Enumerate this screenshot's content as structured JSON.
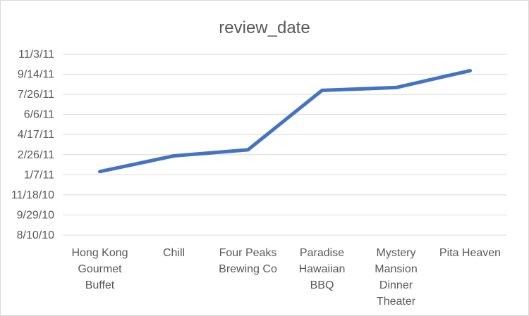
{
  "chart_data": {
    "type": "line",
    "title": "review_date",
    "xlabel": "",
    "ylabel": "",
    "categories": [
      "Hong Kong Gourmet Buffet",
      "Chill",
      "Four Peaks Brewing Co",
      "Paradise Hawaiian BBQ",
      "Mystery Mansion Dinner Theater",
      "Pita Heaven"
    ],
    "category_lines": [
      [
        "Hong Kong",
        "Gourmet",
        "Buffet"
      ],
      [
        "Chill"
      ],
      [
        "Four Peaks",
        "Brewing Co"
      ],
      [
        "Paradise",
        "Hawaiian",
        "BBQ"
      ],
      [
        "Mystery",
        "Mansion",
        "Dinner",
        "Theater"
      ],
      [
        "Pita Heaven"
      ]
    ],
    "series": [
      {
        "values": [
          "2011-01-15",
          "2011-02-23",
          "2011-03-10",
          "2011-08-05",
          "2011-08-12",
          "2011-09-23"
        ],
        "color": "#4472c4"
      }
    ],
    "y_ticks": [
      "11/3/11",
      "9/14/11",
      "7/26/11",
      "6/6/11",
      "4/17/11",
      "2/26/11",
      "1/7/11",
      "11/18/10",
      "9/29/10",
      "8/10/10"
    ],
    "ylim": [
      "2010-08-10",
      "2011-11-03"
    ],
    "grid": true,
    "legend": "none"
  }
}
